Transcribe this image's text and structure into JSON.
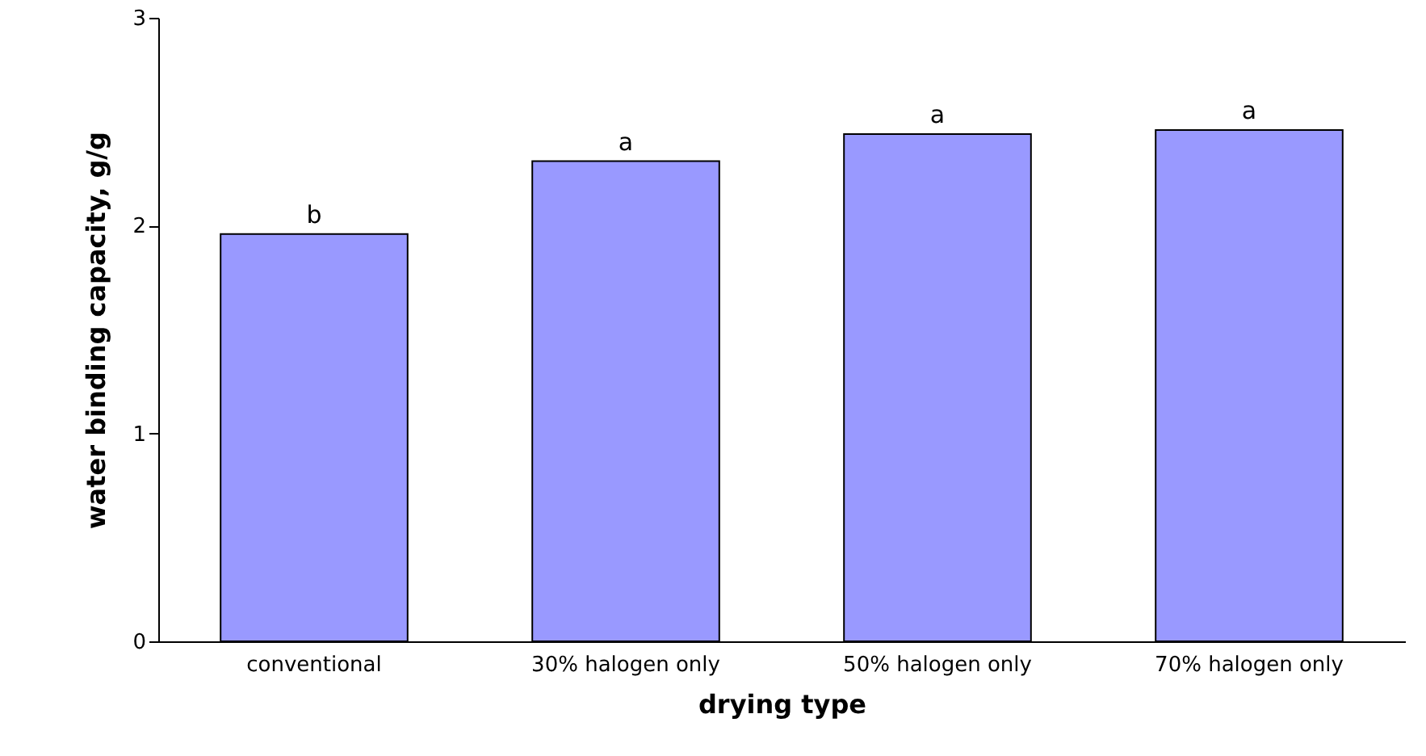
{
  "chart_data": {
    "type": "bar",
    "xlabel": "drying type",
    "ylabel": "water binding capacity, g/g",
    "categories": [
      "conventional",
      "30% halogen only",
      "50% halogen only",
      "70% halogen only"
    ],
    "values": [
      1.96,
      2.31,
      2.44,
      2.46
    ],
    "color": "#9999ff",
    "ylim": [
      0,
      3
    ],
    "yticks": [
      0,
      1,
      2,
      3
    ],
    "grid": false,
    "annotations": [
      {
        "text": "b",
        "x": "conventional",
        "y": 1.96
      },
      {
        "text": "a",
        "x": "30% halogen only",
        "y": 2.31
      },
      {
        "text": "a",
        "x": "50% halogen only",
        "y": 2.44
      },
      {
        "text": "a",
        "x": "70% halogen only",
        "y": 2.46
      }
    ]
  }
}
